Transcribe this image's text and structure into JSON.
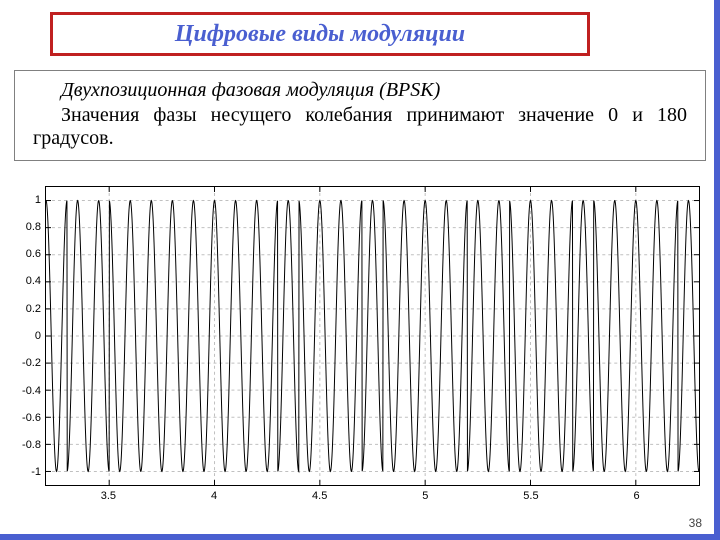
{
  "title": "Цифровые виды модуляции",
  "title_color": "#4a5fd0",
  "title_border_color": "#c02020",
  "subtitle_italic": "Двухпозиционная фазовая модуляция (BPSK)",
  "body_text": "Значения фазы несущего колебания принимают значение 0 и 180 градусов.",
  "page_number": "38",
  "chart": {
    "type": "line",
    "xlim": [
      3.2,
      6.3
    ],
    "ylim": [
      -1.1,
      1.1
    ],
    "xtick_step": 0.5,
    "xtick_start": 3.5,
    "xtick_end": 6.0,
    "ytick_step": 0.2,
    "ytick_start": -1.0,
    "ytick_end": 1.0,
    "carrier_freq_hz": 10,
    "phase_flip_times": [
      3.3,
      3.5,
      4.3,
      4.4,
      4.7,
      4.8,
      5.2,
      5.4,
      5.7,
      5.8,
      6.2
    ],
    "line_color": "#000000",
    "line_width": 1,
    "grid_color": "#c0c0c0",
    "grid_dash": "3,3",
    "background_color": "#ffffff",
    "label_fontsize": 11,
    "aspect_w": 655,
    "aspect_h": 300,
    "samples": 2400
  }
}
